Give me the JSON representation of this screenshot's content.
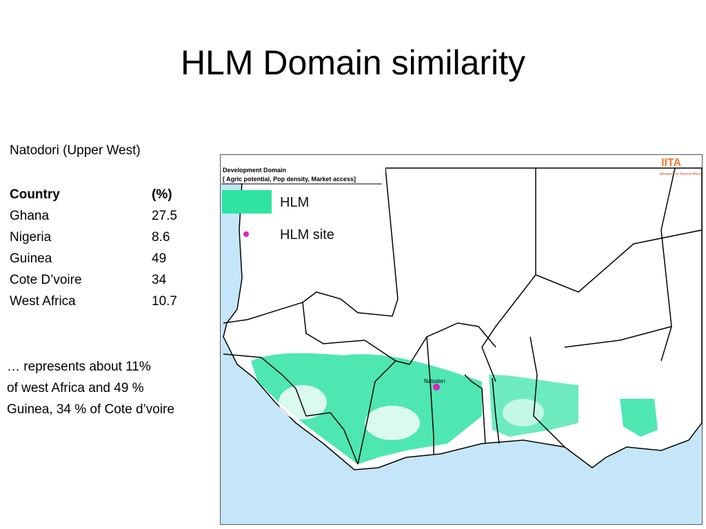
{
  "title": "HLM Domain similarity",
  "subtitle": "Natodori (Upper West)",
  "table": {
    "header": [
      "Country",
      "(%)"
    ],
    "rows": [
      [
        "Ghana",
        27.5
      ],
      [
        "Nigeria",
        8.6
      ],
      [
        "Guinea",
        49
      ],
      [
        "Cote D’voire",
        34
      ],
      [
        "West Africa",
        10.7
      ]
    ]
  },
  "note": [
    "… represents about 11%",
    "of west Africa and 49 %",
    "Guinea, 34 % of Cote d’voire"
  ],
  "map": {
    "legend_title": "Development Domain",
    "legend_subtitle": "[ Agric potential, Pop density, Market access]",
    "legend": [
      "HLM",
      "HLM site"
    ],
    "logo": "IITA",
    "logo_tagline": "Research to Nourish Africa",
    "site_label": "Natodori"
  }
}
